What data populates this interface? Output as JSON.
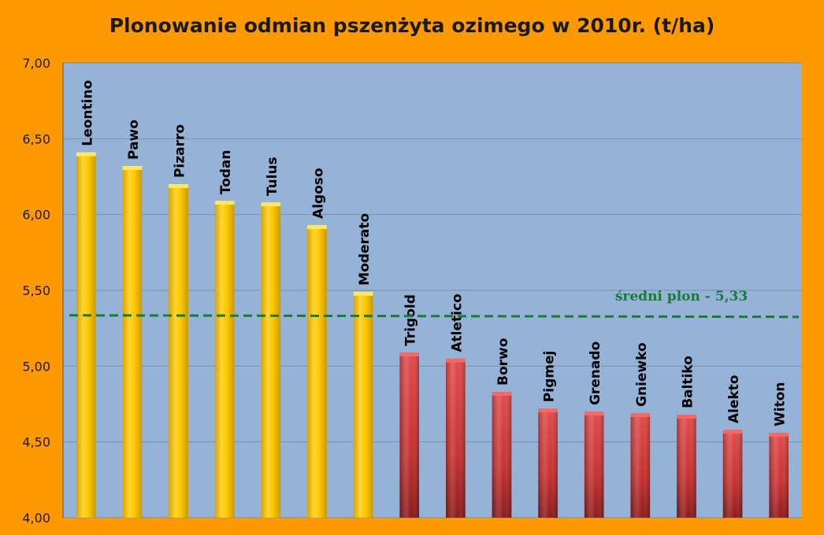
{
  "chart_data": {
    "type": "bar",
    "title": "Plonowanie odmian pszenżyta ozimego w 2010r. (t/ha)",
    "categories": [
      "Leontino",
      "Pawo",
      "Pizarro",
      "Todan",
      "Tulus",
      "Algoso",
      "Moderato",
      "Trigold",
      "Atletico",
      "Borwo",
      "Pigmej",
      "Grenado",
      "Gniewko",
      "Baltiko",
      "Alekto",
      "Witon"
    ],
    "values": [
      6.4,
      6.31,
      6.19,
      6.08,
      6.07,
      5.92,
      5.48,
      5.08,
      5.04,
      4.82,
      4.71,
      4.69,
      4.68,
      4.67,
      4.57,
      4.55
    ],
    "ylim": [
      4.0,
      7.0
    ],
    "y_ticks": [
      "4,00",
      "4,50",
      "5,00",
      "5,50",
      "6,00",
      "6,50",
      "7,00"
    ],
    "grid": true,
    "average": {
      "value": 5.33,
      "label": "średni plon - 5,33"
    },
    "colors": {
      "background": "#ff9900",
      "plot_area": "#95b3d7",
      "above_average_bar": "#ffcc00",
      "below_average_bar": "#d9393a",
      "average_line": "#1a7a3a"
    }
  }
}
